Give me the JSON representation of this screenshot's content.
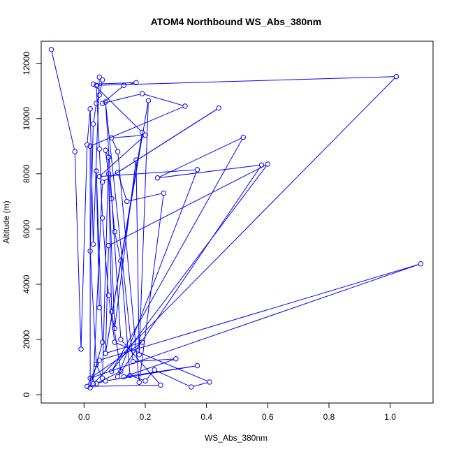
{
  "chart_data": {
    "type": "scatter",
    "title": "ATOM4 Northbound WS_Abs_380nm",
    "xlabel": "WS_Abs_380nm",
    "ylabel": "Altitude (m)",
    "xlim": [
      -0.14,
      1.14
    ],
    "ylim": [
      -300,
      12800
    ],
    "x_ticks": [
      0.0,
      0.2,
      0.4,
      0.6,
      0.8,
      1.0
    ],
    "x_tick_labels": [
      "0.0",
      "0.2",
      "0.4",
      "0.6",
      "0.8",
      "1.0"
    ],
    "y_ticks": [
      0,
      2000,
      4000,
      6000,
      8000,
      10000,
      12000
    ],
    "y_tick_labels": [
      "0",
      "2000",
      "4000",
      "6000",
      "8000",
      "10000",
      "12000"
    ],
    "connected": true,
    "color": "#0000ff",
    "series": [
      {
        "points": [
          [
            -0.107,
            12500
          ],
          [
            -0.03,
            8800
          ],
          [
            -0.01,
            1650
          ],
          [
            0.01,
            9050
          ],
          [
            0.02,
            10350
          ],
          [
            0.03,
            5450
          ],
          [
            0.05,
            11500
          ],
          [
            0.06,
            11400
          ],
          [
            0.05,
            10850
          ],
          [
            0.04,
            10550
          ],
          [
            0.03,
            9800
          ],
          [
            0.02,
            5200
          ],
          [
            0.04,
            1100
          ],
          [
            0.06,
            600
          ],
          [
            0.08,
            8600
          ],
          [
            0.07,
            8850
          ],
          [
            0.09,
            7100
          ],
          [
            0.1,
            5900
          ],
          [
            0.12,
            4850
          ],
          [
            0.15,
            700
          ],
          [
            0.2,
            500
          ],
          [
            0.23,
            900
          ],
          [
            0.35,
            280
          ],
          [
            0.41,
            460
          ],
          [
            0.1,
            1900
          ],
          [
            0.08,
            3600
          ],
          [
            0.06,
            6400
          ],
          [
            0.05,
            8900
          ],
          [
            0.04,
            11200
          ],
          [
            1.02,
            11520
          ],
          [
            0.03,
            400
          ],
          [
            0.06,
            7700
          ],
          [
            0.44,
            10380
          ],
          [
            0.11,
            8050
          ],
          [
            0.14,
            7000
          ],
          [
            0.26,
            7300
          ],
          [
            0.18,
            450
          ],
          [
            0.11,
            8800
          ],
          [
            0.09,
            9300
          ],
          [
            0.2,
            9400
          ],
          [
            0.05,
            7900
          ],
          [
            0.37,
            8150
          ],
          [
            0.11,
            650
          ],
          [
            0.58,
            8320
          ],
          [
            0.24,
            7850
          ],
          [
            0.52,
            9320
          ],
          [
            0.09,
            850
          ],
          [
            0.6,
            8350
          ],
          [
            0.08,
            5400
          ],
          [
            0.07,
            1500
          ],
          [
            0.19,
            1900
          ],
          [
            0.02,
            600
          ],
          [
            1.1,
            4740
          ],
          [
            0.05,
            1250
          ],
          [
            0.01,
            300
          ],
          [
            0.25,
            350
          ],
          [
            0.12,
            2000
          ],
          [
            0.07,
            10600
          ],
          [
            0.16,
            1200
          ],
          [
            0.3,
            1300
          ],
          [
            0.13,
            650
          ],
          [
            0.37,
            1050
          ],
          [
            0.07,
            500
          ],
          [
            0.04,
            400
          ],
          [
            0.12,
            850
          ],
          [
            0.09,
            3000
          ],
          [
            0.08,
            8000
          ],
          [
            0.1,
            2400
          ],
          [
            0.17,
            8500
          ],
          [
            0.18,
            1450
          ],
          [
            0.21,
            10650
          ],
          [
            0.07,
            1500
          ],
          [
            0.19,
            9500
          ],
          [
            0.03,
            11250
          ],
          [
            0.17,
            11300
          ],
          [
            0.13,
            11200
          ],
          [
            0.06,
            10550
          ],
          [
            0.19,
            10900
          ],
          [
            0.33,
            10450
          ],
          [
            0.02,
            9000
          ],
          [
            0.02,
            250
          ],
          [
            0.06,
            1900
          ],
          [
            0.04,
            8100
          ],
          [
            0.05,
            3150
          ]
        ]
      }
    ]
  }
}
